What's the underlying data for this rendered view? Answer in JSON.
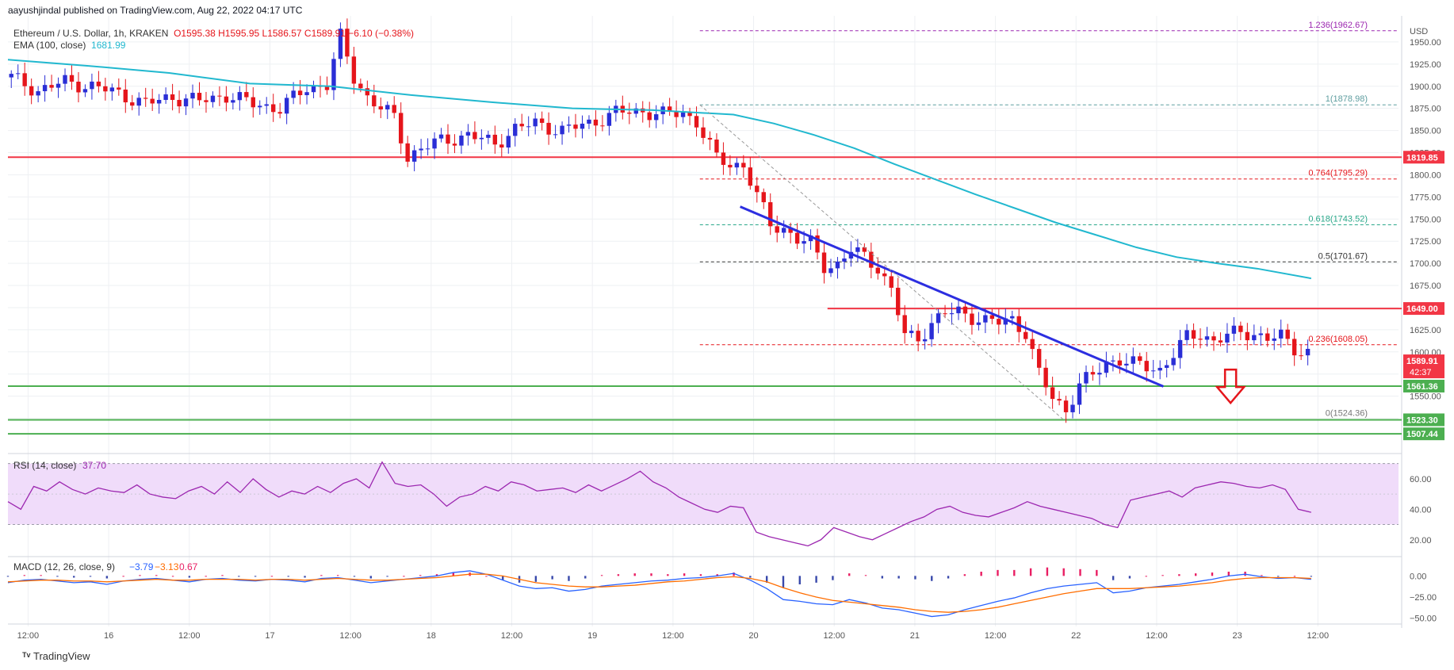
{
  "header": {
    "publisher": "aayushjindal published on TradingView.com, Aug 22, 2022 04:17 UTC",
    "symbol": "Ethereum / U.S. Dollar, 1h, KRAKEN",
    "ohlc": "O1595.38  H1595.95  L1586.57  C1589.91  −6.10 (−0.38%)",
    "ema_label": "EMA (100, close)",
    "ema_value": "1681.99"
  },
  "footer": {
    "brand": "TradingView"
  },
  "colors": {
    "up": "#2a2ed6",
    "down": "#e5151b",
    "ema": "#21b8cf",
    "red_level": "#f23645",
    "green_level": "#4caf50",
    "trend": "#2c2ee0",
    "rsi_band": "#f0dcfa",
    "rsi_line": "#9c27b0",
    "macd": "#2962ff",
    "signal": "#ff6d00"
  },
  "chart_data": [
    {
      "type": "candlestick",
      "title": "Ethereum / U.S. Dollar, 1h, KRAKEN",
      "currency": "USD",
      "ylim": [
        1487,
        1975
      ],
      "y_ticks": [
        "1950.00",
        "1925.00",
        "1900.00",
        "1875.00",
        "1850.00",
        "1825.00",
        "1800.00",
        "1775.00",
        "1750.00",
        "1725.00",
        "1700.00",
        "1675.00",
        "1650.00",
        "1625.00",
        "1600.00",
        "1575.00",
        "1550.00",
        "1525.00"
      ],
      "x_ticks": [
        "12:00",
        "16",
        "12:00",
        "17",
        "12:00",
        "18",
        "12:00",
        "19",
        "12:00",
        "20",
        "12:00",
        "21",
        "12:00",
        "22",
        "12:00",
        "23",
        "12:00"
      ],
      "x_range_hours": [
        "2022-08-15 09:00",
        "2022-08-23 18:00"
      ],
      "price_points": [
        [
          0,
          1910
        ],
        [
          4,
          1895
        ],
        [
          8,
          1905
        ],
        [
          12,
          1900
        ],
        [
          16,
          1892
        ],
        [
          20,
          1880
        ],
        [
          24,
          1888
        ],
        [
          28,
          1883
        ],
        [
          32,
          1890
        ],
        [
          36,
          1880
        ],
        [
          40,
          1875
        ],
        [
          44,
          1898
        ],
        [
          47,
          1902
        ],
        [
          49,
          1955
        ],
        [
          51,
          1910
        ],
        [
          53,
          1888
        ],
        [
          55,
          1875
        ],
        [
          57,
          1865
        ],
        [
          59,
          1820
        ],
        [
          61,
          1830
        ],
        [
          64,
          1838
        ],
        [
          68,
          1845
        ],
        [
          72,
          1835
        ],
        [
          75,
          1852
        ],
        [
          78,
          1858
        ],
        [
          82,
          1850
        ],
        [
          86,
          1858
        ],
        [
          90,
          1870
        ],
        [
          94,
          1872
        ],
        [
          97,
          1868
        ],
        [
          100,
          1870
        ],
        [
          102,
          1860
        ],
        [
          105,
          1818
        ],
        [
          107,
          1812
        ],
        [
          109,
          1811
        ],
        [
          111,
          1776
        ],
        [
          113,
          1743
        ],
        [
          115,
          1740
        ],
        [
          117,
          1727
        ],
        [
          119,
          1722
        ],
        [
          121,
          1697
        ],
        [
          123,
          1699
        ],
        [
          125,
          1715
        ],
        [
          127,
          1707
        ],
        [
          129,
          1696
        ],
        [
          131,
          1670
        ],
        [
          133,
          1618
        ],
        [
          135,
          1615
        ],
        [
          137,
          1633
        ],
        [
          139,
          1643
        ],
        [
          141,
          1645
        ],
        [
          143,
          1640
        ],
        [
          145,
          1635
        ],
        [
          147,
          1633
        ],
        [
          149,
          1637
        ],
        [
          151,
          1622
        ],
        [
          153,
          1575
        ],
        [
          155,
          1548
        ],
        [
          157,
          1535
        ],
        [
          159,
          1563
        ],
        [
          161,
          1573
        ],
        [
          163,
          1588
        ],
        [
          165,
          1592
        ],
        [
          167,
          1586
        ],
        [
          169,
          1583
        ],
        [
          171,
          1580
        ],
        [
          173,
          1598
        ],
        [
          175,
          1616
        ],
        [
          177,
          1620
        ],
        [
          179,
          1613
        ],
        [
          181,
          1618
        ],
        [
          183,
          1622
        ],
        [
          185,
          1621
        ],
        [
          187,
          1615
        ],
        [
          189,
          1617
        ],
        [
          191,
          1604
        ],
        [
          193,
          1600
        ],
        [
          194,
          1590
        ]
      ],
      "ema_points": [
        [
          0,
          1930
        ],
        [
          12,
          1923
        ],
        [
          24,
          1915
        ],
        [
          36,
          1903
        ],
        [
          48,
          1900
        ],
        [
          60,
          1890
        ],
        [
          72,
          1882
        ],
        [
          84,
          1875
        ],
        [
          96,
          1873
        ],
        [
          108,
          1868
        ],
        [
          114,
          1858
        ],
        [
          120,
          1845
        ],
        [
          126,
          1830
        ],
        [
          132,
          1812
        ],
        [
          138,
          1795
        ],
        [
          144,
          1778
        ],
        [
          150,
          1762
        ],
        [
          156,
          1746
        ],
        [
          162,
          1732
        ],
        [
          168,
          1718
        ],
        [
          174,
          1707
        ],
        [
          180,
          1700
        ],
        [
          186,
          1694
        ],
        [
          194,
          1683
        ]
      ],
      "levels": {
        "resistance_1": "1819.85",
        "resistance_2": "1649.00",
        "last_price": "1589.91",
        "countdown": "42:37",
        "support_1": "1561.36",
        "support_2": "1523.30",
        "support_3": "1507.44"
      },
      "fibonacci": [
        {
          "label": "1.236(1962.67)",
          "value": 1962.67
        },
        {
          "label": "1(1878.98)",
          "value": 1878.98
        },
        {
          "label": "0.764(1795.29)",
          "value": 1795.29
        },
        {
          "label": "0.618(1743.52)",
          "value": 1743.52
        },
        {
          "label": "0.5(1701.67)",
          "value": 1701.67
        },
        {
          "label": "0.236(1608.05)",
          "value": 1608.05
        },
        {
          "label": "0(1524.36)",
          "value": 1524.36
        }
      ],
      "trendline": {
        "from": [
          109,
          1764
        ],
        "to": [
          172,
          1561
        ]
      }
    },
    {
      "type": "line",
      "title": "RSI (14, close)",
      "value_label": "37.70",
      "ylim": [
        10,
        75
      ],
      "y_ticks": [
        "60.00",
        "40.00",
        "20.00"
      ],
      "band": [
        30,
        70
      ],
      "values": [
        45,
        40,
        55,
        52,
        58,
        53,
        50,
        54,
        52,
        51,
        56,
        50,
        48,
        47,
        52,
        55,
        50,
        58,
        51,
        60,
        53,
        48,
        52,
        50,
        55,
        51,
        57,
        60,
        54,
        71,
        57,
        55,
        56,
        50,
        42,
        48,
        50,
        55,
        52,
        58,
        56,
        52,
        53,
        54,
        51,
        56,
        52,
        56,
        60,
        65,
        58,
        54,
        48,
        44,
        40,
        38,
        42,
        41,
        25,
        22,
        20,
        18,
        16,
        20,
        28,
        25,
        22,
        20,
        24,
        28,
        32,
        35,
        40,
        42,
        38,
        36,
        35,
        38,
        41,
        45,
        42,
        40,
        38,
        36,
        34,
        30,
        28,
        46,
        48,
        50,
        52,
        48,
        54,
        56,
        58,
        57,
        55,
        54,
        56,
        53,
        40,
        38
      ]
    },
    {
      "type": "histogram",
      "title": "MACD (12, 26, close, 9)",
      "values_label": [
        "−3.79",
        "−3.13",
        "0.67"
      ],
      "ylim": [
        -55,
        20
      ],
      "y_ticks": [
        "0.00",
        "−25.00",
        "−50.00"
      ],
      "macd": [
        -8,
        -5,
        -4,
        -6,
        -8,
        -7,
        -10,
        -6,
        -4,
        -3,
        -5,
        -7,
        -4,
        -3,
        -5,
        -6,
        -4,
        -5,
        -7,
        -3,
        -2,
        -5,
        -8,
        -6,
        -4,
        -2,
        0,
        4,
        6,
        2,
        -5,
        -12,
        -15,
        -14,
        -18,
        -16,
        -12,
        -10,
        -8,
        -6,
        -5,
        -3,
        -2,
        0,
        3,
        -5,
        -15,
        -28,
        -30,
        -33,
        -34,
        -28,
        -32,
        -38,
        -40,
        -44,
        -48,
        -46,
        -40,
        -35,
        -30,
        -26,
        -20,
        -15,
        -12,
        -10,
        -8,
        -20,
        -18,
        -14,
        -12,
        -10,
        -7,
        -4,
        0,
        2,
        -1,
        -3,
        -2,
        -4
      ],
      "signal": [
        -7,
        -6,
        -5,
        -5,
        -6,
        -6,
        -7,
        -6,
        -5,
        -4,
        -5,
        -5,
        -4,
        -4,
        -4,
        -5,
        -4,
        -4,
        -5,
        -4,
        -3,
        -4,
        -5,
        -5,
        -4,
        -3,
        -2,
        0,
        2,
        2,
        0,
        -4,
        -8,
        -10,
        -12,
        -13,
        -13,
        -12,
        -11,
        -9,
        -7,
        -6,
        -4,
        -2,
        -1,
        -3,
        -7,
        -14,
        -20,
        -25,
        -29,
        -31,
        -33,
        -35,
        -37,
        -40,
        -42,
        -43,
        -42,
        -40,
        -37,
        -33,
        -29,
        -25,
        -21,
        -18,
        -15,
        -15,
        -15,
        -14,
        -13,
        -12,
        -10,
        -8,
        -5,
        -3,
        -2,
        -2,
        -2,
        -3
      ]
    }
  ]
}
